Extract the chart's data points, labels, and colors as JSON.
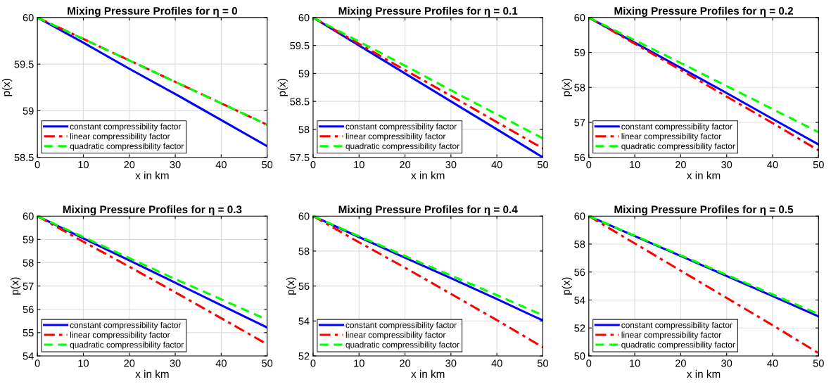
{
  "chart_data": [
    {
      "type": "line",
      "title": "Mixing Pressure Profiles for η = 0",
      "xlabel": "x in km",
      "ylabel": "p(x)",
      "x": [
        0,
        10,
        20,
        30,
        40,
        50
      ],
      "xlim": [
        0,
        50
      ],
      "xticks": [
        0,
        10,
        20,
        30,
        40,
        50
      ],
      "ylim": [
        58.5,
        60
      ],
      "yticks": [
        58.5,
        59,
        59.5,
        60
      ],
      "grid": true,
      "legend": "bottom left",
      "series": [
        {
          "name": "constant compressibility factor",
          "color": "#0000ff",
          "line_style": "solid",
          "values": [
            60,
            59.73,
            59.45,
            59.18,
            58.9,
            58.62
          ]
        },
        {
          "name": "linear compressibility factor",
          "color": "#ff0000",
          "line_style": "dashdot",
          "values": [
            60,
            59.77,
            59.54,
            59.31,
            59.08,
            58.85
          ]
        },
        {
          "name": "quadratic compressibility factor",
          "color": "#00ff00",
          "line_style": "dashed",
          "values": [
            60,
            59.77,
            59.54,
            59.31,
            59.08,
            58.85
          ]
        }
      ]
    },
    {
      "type": "line",
      "title": "Mixing Pressure Profiles for η = 0.1",
      "xlabel": "x in km",
      "ylabel": "p(x)",
      "x": [
        0,
        10,
        20,
        30,
        40,
        50
      ],
      "xlim": [
        0,
        50
      ],
      "xticks": [
        0,
        10,
        20,
        30,
        40,
        50
      ],
      "ylim": [
        57.5,
        60
      ],
      "yticks": [
        57.5,
        58,
        58.5,
        59,
        59.5,
        60
      ],
      "grid": true,
      "legend": "bottom left",
      "series": [
        {
          "name": "constant compressibility factor",
          "color": "#0000ff",
          "line_style": "solid",
          "values": [
            60,
            59.5,
            59.0,
            58.5,
            58.0,
            57.5
          ]
        },
        {
          "name": "linear compressibility factor",
          "color": "#ff0000",
          "line_style": "dashdot",
          "values": [
            60,
            59.53,
            59.06,
            58.6,
            58.13,
            57.66
          ]
        },
        {
          "name": "quadratic compressibility factor",
          "color": "#00ff00",
          "line_style": "dashed",
          "values": [
            60,
            59.57,
            59.14,
            58.7,
            58.27,
            57.84
          ]
        }
      ]
    },
    {
      "type": "line",
      "title": "Mixing Pressure Profiles for η = 0.2",
      "xlabel": "x in km",
      "ylabel": "p(x)",
      "x": [
        0,
        10,
        20,
        30,
        40,
        50
      ],
      "xlim": [
        0,
        50
      ],
      "xticks": [
        0,
        10,
        20,
        30,
        40,
        50
      ],
      "ylim": [
        56,
        60
      ],
      "yticks": [
        56,
        57,
        58,
        59,
        60
      ],
      "grid": true,
      "legend": "bottom left",
      "series": [
        {
          "name": "constant compressibility factor",
          "color": "#0000ff",
          "line_style": "solid",
          "values": [
            60,
            59.28,
            58.56,
            57.84,
            57.1,
            56.37
          ]
        },
        {
          "name": "linear compressibility factor",
          "color": "#ff0000",
          "line_style": "dashdot",
          "values": [
            60,
            59.25,
            58.5,
            57.74,
            56.98,
            56.2
          ]
        },
        {
          "name": "quadratic compressibility factor",
          "color": "#00ff00",
          "line_style": "dashed",
          "values": [
            60,
            59.35,
            58.7,
            58.04,
            57.38,
            56.72
          ]
        }
      ]
    },
    {
      "type": "line",
      "title": "Mixing Pressure Profiles for η = 0.3",
      "xlabel": "x in km",
      "ylabel": "p(x)",
      "x": [
        0,
        10,
        20,
        30,
        40,
        50
      ],
      "xlim": [
        0,
        50
      ],
      "xticks": [
        0,
        10,
        20,
        30,
        40,
        50
      ],
      "ylim": [
        54,
        60
      ],
      "yticks": [
        54,
        55,
        56,
        57,
        58,
        59,
        60
      ],
      "grid": true,
      "legend": "bottom left",
      "series": [
        {
          "name": "constant compressibility factor",
          "color": "#0000ff",
          "line_style": "solid",
          "values": [
            60,
            59.04,
            58.1,
            57.14,
            56.18,
            55.22
          ]
        },
        {
          "name": "linear compressibility factor",
          "color": "#ff0000",
          "line_style": "dashdot",
          "values": [
            60,
            58.9,
            57.83,
            56.73,
            55.62,
            54.5
          ]
        },
        {
          "name": "quadratic compressibility factor",
          "color": "#00ff00",
          "line_style": "dashed",
          "values": [
            60,
            59.1,
            58.2,
            57.3,
            56.43,
            55.55
          ]
        }
      ]
    },
    {
      "type": "line",
      "title": "Mixing Pressure Profiles for η = 0.4",
      "xlabel": "x in km",
      "ylabel": "p(x)",
      "x": [
        0,
        10,
        20,
        30,
        40,
        50
      ],
      "xlim": [
        0,
        50
      ],
      "xticks": [
        0,
        10,
        20,
        30,
        40,
        50
      ],
      "ylim": [
        52,
        60
      ],
      "yticks": [
        52,
        54,
        56,
        58,
        60
      ],
      "grid": true,
      "legend": "bottom left",
      "series": [
        {
          "name": "constant compressibility factor",
          "color": "#0000ff",
          "line_style": "solid",
          "values": [
            60,
            58.8,
            57.62,
            56.45,
            55.25,
            54.03
          ]
        },
        {
          "name": "linear compressibility factor",
          "color": "#ff0000",
          "line_style": "dashdot",
          "values": [
            60,
            58.5,
            57.05,
            55.55,
            54.05,
            52.5
          ]
        },
        {
          "name": "quadratic compressibility factor",
          "color": "#00ff00",
          "line_style": "dashed",
          "values": [
            60,
            58.85,
            57.72,
            56.6,
            55.48,
            54.33
          ]
        }
      ]
    },
    {
      "type": "line",
      "title": "Mixing Pressure Profiles for η = 0.5",
      "xlabel": "x in km",
      "ylabel": "p(x)",
      "x": [
        0,
        10,
        20,
        30,
        40,
        50
      ],
      "xlim": [
        0,
        50
      ],
      "xticks": [
        0,
        10,
        20,
        30,
        40,
        50
      ],
      "ylim": [
        50,
        60
      ],
      "yticks": [
        50,
        52,
        54,
        56,
        58,
        60
      ],
      "grid": true,
      "legend": "bottom left",
      "series": [
        {
          "name": "constant compressibility factor",
          "color": "#0000ff",
          "line_style": "solid",
          "values": [
            60,
            58.57,
            57.15,
            55.72,
            54.28,
            52.83
          ]
        },
        {
          "name": "linear compressibility factor",
          "color": "#ff0000",
          "line_style": "dashdot",
          "values": [
            60,
            58.05,
            56.1,
            54.15,
            52.2,
            50.2
          ]
        },
        {
          "name": "quadratic compressibility factor",
          "color": "#00ff00",
          "line_style": "dashed",
          "values": [
            60,
            58.6,
            57.2,
            55.8,
            54.4,
            53.0
          ]
        }
      ]
    }
  ]
}
